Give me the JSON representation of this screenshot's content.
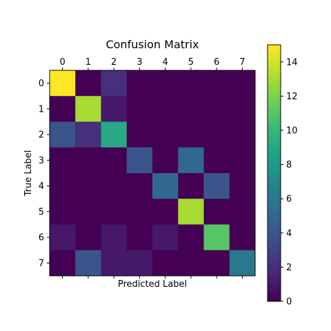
{
  "chart_data": {
    "type": "heatmap",
    "title": "Confusion Matrix",
    "xlabel": "Predicted Label",
    "ylabel": "True Label",
    "x_ticks": [
      "0",
      "1",
      "2",
      "3",
      "4",
      "5",
      "6",
      "7"
    ],
    "y_ticks": [
      "0",
      "1",
      "2",
      "3",
      "4",
      "5",
      "6",
      "7"
    ],
    "matrix": [
      [
        15,
        0,
        2,
        0,
        0,
        0,
        0,
        0
      ],
      [
        0,
        13,
        1,
        0,
        0,
        0,
        0,
        0
      ],
      [
        4,
        2,
        9,
        0,
        0,
        0,
        0,
        0
      ],
      [
        0,
        0,
        0,
        4,
        0,
        5,
        0,
        0
      ],
      [
        0,
        0,
        0,
        0,
        5,
        0,
        4,
        0
      ],
      [
        0,
        0,
        0,
        0,
        0,
        13,
        0,
        0
      ],
      [
        1,
        0,
        1,
        0,
        1,
        0,
        11,
        0
      ],
      [
        0,
        4,
        1,
        1,
        0,
        0,
        0,
        6
      ]
    ],
    "colormap": "viridis",
    "vmin": 0,
    "vmax": 15,
    "colorbar_ticks": [
      0,
      2,
      4,
      6,
      8,
      10,
      12,
      14
    ],
    "colorbar_tick_labels": [
      "0",
      "2",
      "4",
      "6",
      "8",
      "10",
      "12",
      "14"
    ],
    "grid": false,
    "x_tick_position": "top",
    "x_label_position": "bottom"
  }
}
